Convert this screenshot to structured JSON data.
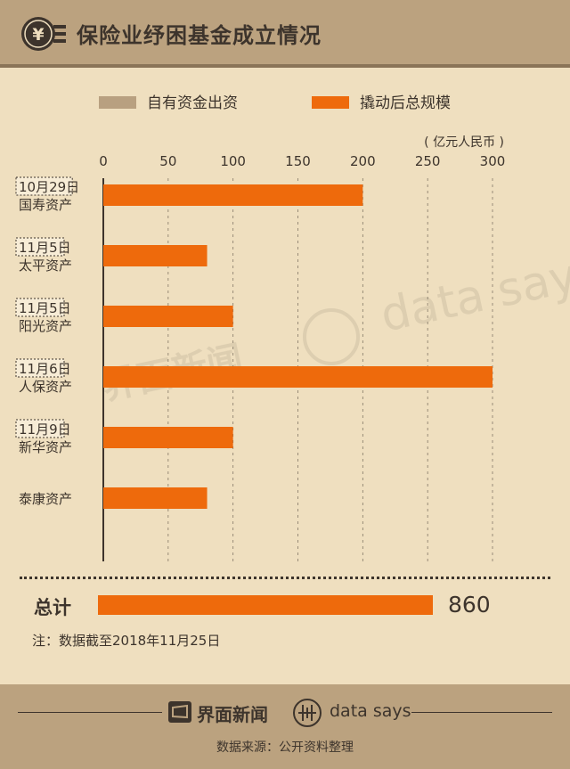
{
  "header": {
    "title": "保险业纾困基金成立情况",
    "logo_icon": "yuan-coin-icon",
    "logo_glyph": "¥"
  },
  "chart_data": {
    "type": "bar",
    "orientation": "horizontal",
    "unit_label": "( 亿元人民币 )",
    "xlim": [
      0,
      300
    ],
    "ticks": [
      0,
      50,
      100,
      150,
      200,
      250,
      300
    ],
    "grid": true,
    "legend_placement": "top",
    "legend": [
      {
        "name": "自有资金出资",
        "color": "#b8a080"
      },
      {
        "name": "撬动后总规模",
        "color": "#ee6a0c"
      }
    ],
    "categories": [
      {
        "date": "10月29日",
        "name": "国寿资产"
      },
      {
        "date": "11月5日",
        "name": "太平资产"
      },
      {
        "date": "11月5日",
        "name": "阳光资产"
      },
      {
        "date": "11月6日",
        "name": "人保资产"
      },
      {
        "date": "11月9日",
        "name": "新华资产"
      },
      {
        "date": "",
        "name": "泰康资产"
      }
    ],
    "series": [
      {
        "name": "撬动后总规模",
        "values": [
          200,
          80,
          100,
          300,
          100,
          80
        ]
      }
    ]
  },
  "total": {
    "label": "总计",
    "value": 860,
    "value_text": "860"
  },
  "note": "注：数据截至2018年11月25日",
  "footer": {
    "brand_jiemian": "界面新闻",
    "brand_datasays": "data says",
    "source": "数据来源：公开资料整理"
  },
  "watermark": {
    "datasays": "data says",
    "jiemian": "界面新闻"
  },
  "colors": {
    "header_bg": "#bba27f",
    "page_bg": "#efdfbf",
    "bar": "#ee6a0c",
    "own_funds": "#b8a080",
    "text": "#3d342c"
  }
}
